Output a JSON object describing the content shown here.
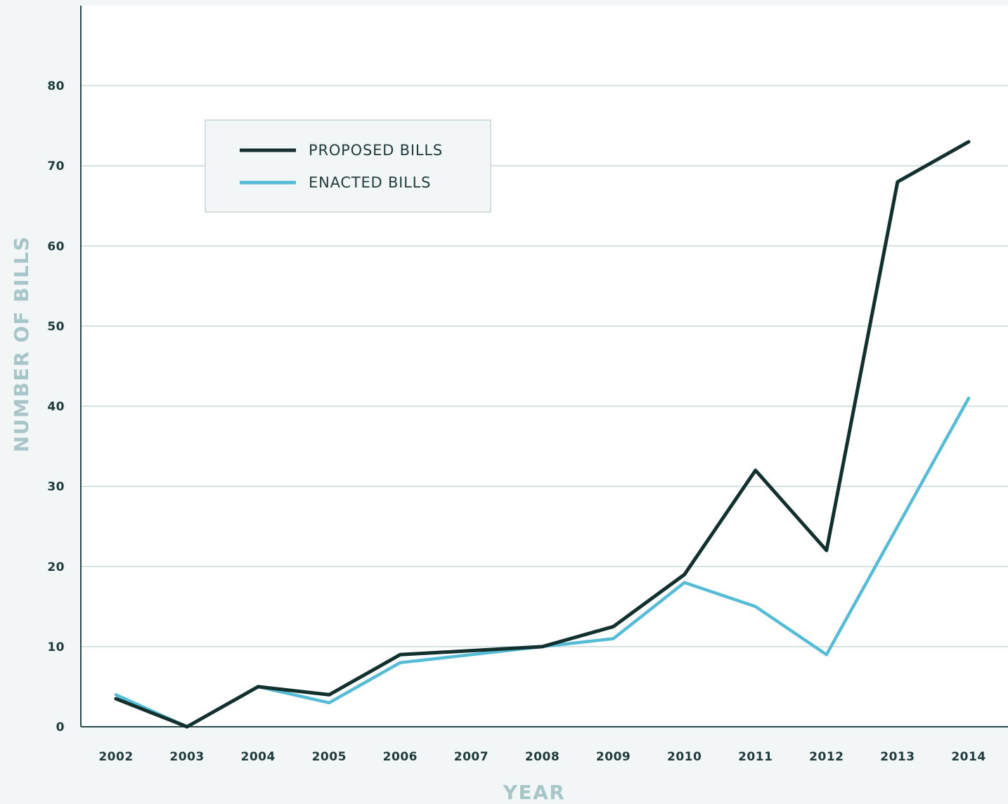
{
  "chart_data": {
    "type": "line",
    "title": "",
    "xlabel": "YEAR",
    "ylabel": "NUMBER OF BILLS",
    "categories": [
      "2002",
      "2003",
      "2004",
      "2005",
      "2006",
      "2007",
      "2008",
      "2009",
      "2010",
      "2011",
      "2012",
      "2013",
      "2014"
    ],
    "ylim": [
      0,
      80
    ],
    "yticks": [
      0,
      10,
      20,
      30,
      40,
      50,
      60,
      70,
      80
    ],
    "grid": true,
    "legend_position": "top-left",
    "series": [
      {
        "name": "PROPOSED BILLS",
        "color": "#12302e",
        "values": [
          3.5,
          0,
          5,
          4,
          9,
          9.5,
          10,
          12.5,
          19,
          32,
          22,
          68,
          73
        ]
      },
      {
        "name": "ENACTED BILLS",
        "color": "#56bcd6",
        "values": [
          4,
          0,
          5,
          3,
          8,
          9,
          10,
          11,
          18,
          15,
          9,
          25,
          41
        ]
      }
    ]
  }
}
